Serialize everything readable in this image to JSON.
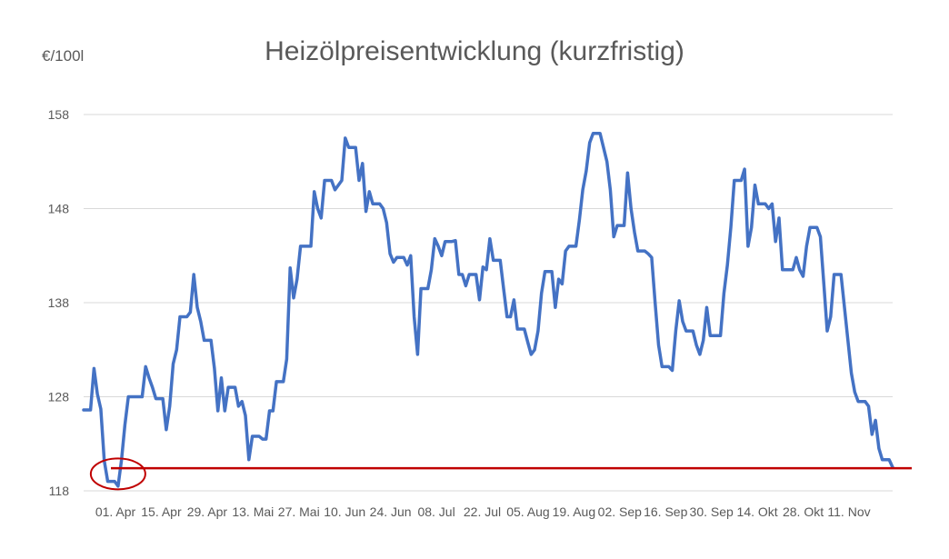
{
  "chart_data": {
    "type": "line",
    "title": "Heizölpreisentwicklung (kurzfristig)",
    "ylabel": "€/100l",
    "xlabel": "",
    "ylim": [
      118,
      158
    ],
    "yticks": [
      118,
      128,
      138,
      148,
      158
    ],
    "xticks": [
      "01. Apr",
      "15. Apr",
      "29. Apr",
      "13. Mai",
      "27. Mai",
      "10. Jun",
      "24. Jun",
      "08. Jul",
      "22. Jul",
      "05. Aug",
      "19. Aug",
      "02. Sep",
      "16. Sep",
      "30. Sep",
      "14. Okt",
      "28. Okt",
      "11. Nov"
    ],
    "grid": true,
    "legend": "none",
    "colors": {
      "series": "#4472C4",
      "reference": "#C00000",
      "highlight": "#C00000",
      "grid": "#D9D9D9",
      "text": "#595959"
    },
    "series": [
      {
        "values": [
          126.6,
          126.6,
          126.6,
          131,
          128.3,
          126.7,
          121.2,
          119,
          119,
          119,
          118.5,
          121.3,
          125,
          128,
          128,
          128,
          128,
          128,
          131.2,
          130,
          129,
          127.8,
          127.8,
          127.8,
          124.5,
          127,
          131.5,
          133,
          136.5,
          136.5,
          136.5,
          137,
          141,
          137.5,
          136,
          134,
          134,
          134,
          131,
          126.5,
          130,
          126.5,
          129,
          129,
          129,
          127,
          127.5,
          126,
          121.3,
          123.8,
          123.8,
          123.8,
          123.5,
          123.5,
          126.5,
          126.5,
          129.6,
          129.6,
          129.6,
          132,
          141.7,
          138.5,
          140.5,
          144,
          144,
          144,
          144,
          149.8,
          148,
          147,
          151,
          151,
          151,
          150,
          150.5,
          151,
          155.5,
          154.5,
          154.5,
          154.5,
          151,
          152.8,
          147.7,
          149.8,
          148.5,
          148.5,
          148.5,
          148,
          146.5,
          143.2,
          142.3,
          142.8,
          142.8,
          142.8,
          142,
          143,
          136.5,
          132.5,
          139.5,
          139.5,
          139.5,
          141.5,
          144.8,
          144,
          143,
          144.5,
          144.5,
          144.5,
          144.6,
          141,
          141,
          139.8,
          141,
          141,
          141,
          138.3,
          141.8,
          141.5,
          144.8,
          142.5,
          142.5,
          142.5,
          139.5,
          136.5,
          136.5,
          138.3,
          135.2,
          135.2,
          135.2,
          133.8,
          132.5,
          133,
          135,
          139,
          141.3,
          141.3,
          141.3,
          137.5,
          140.5,
          140,
          143.5,
          144,
          144,
          144,
          146.8,
          150,
          152,
          155,
          156,
          156,
          156,
          154.5,
          153,
          150,
          145,
          146.2,
          146.2,
          146.2,
          151.8,
          148,
          145.5,
          143.5,
          143.5,
          143.5,
          143.2,
          142.8,
          138,
          133.5,
          131.2,
          131.2,
          131.2,
          130.8,
          135,
          138.2,
          136,
          135,
          135,
          135,
          133.5,
          132.5,
          134,
          137.5,
          134.5,
          134.5,
          134.5,
          134.5,
          139,
          142,
          146,
          151,
          151,
          151,
          152.2,
          144,
          146,
          150.5,
          148.5,
          148.5,
          148.5,
          148,
          148.5,
          144.5,
          147,
          141.5,
          141.5,
          141.5,
          141.5,
          142.8,
          141.5,
          140.8,
          144,
          146,
          146,
          146,
          145,
          140,
          135,
          136.5,
          141,
          141,
          141,
          137.5,
          134,
          130.5,
          128.5,
          127.5,
          127.5,
          127.5,
          127,
          124,
          125.5,
          122.5,
          121.3,
          121.3,
          121.3,
          120.5
        ]
      }
    ],
    "reference_line": {
      "y": 120.4
    },
    "highlight": {
      "x_index": 10,
      "y": 119.8
    }
  }
}
